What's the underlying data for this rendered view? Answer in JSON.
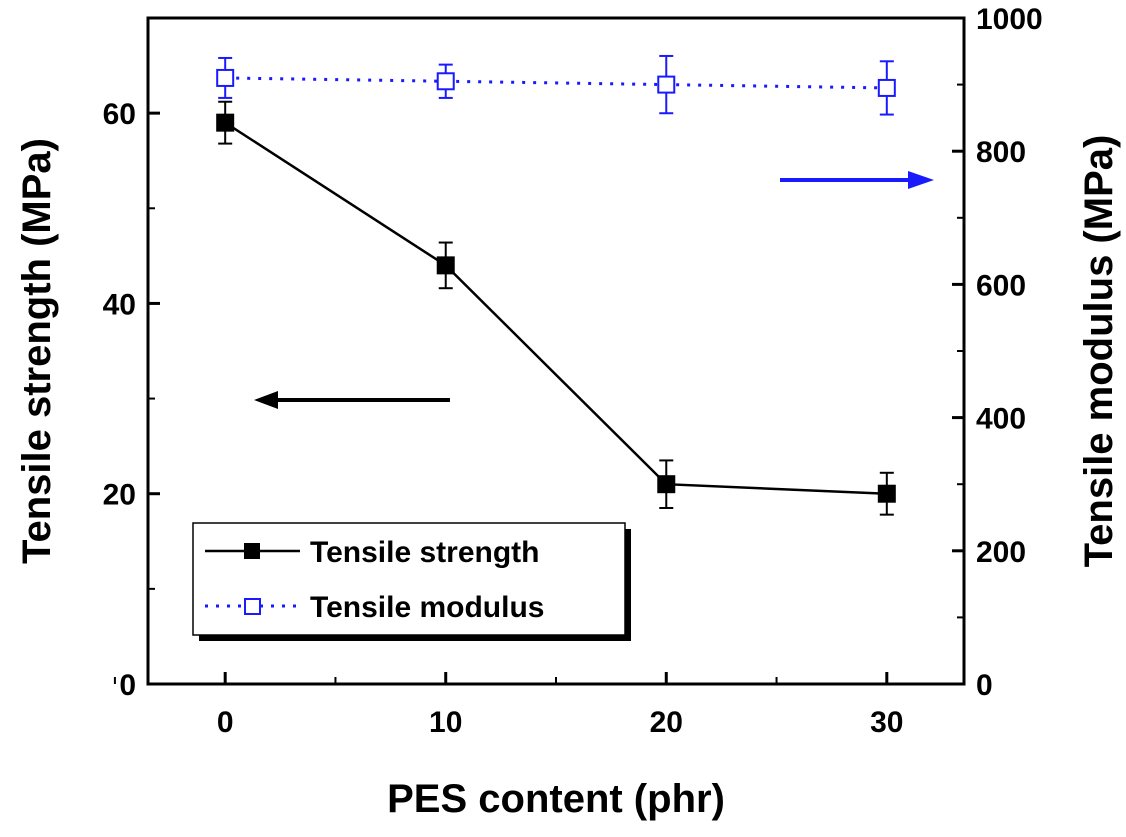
{
  "chart_data": {
    "type": "line",
    "xlabel": "PES content (phr)",
    "ylabel_left": "Tensile strength (MPa)",
    "ylabel_right": "Tensile modulus (MPa)",
    "x": [
      0,
      10,
      20,
      30
    ],
    "xticks": [
      "0",
      "10",
      "20",
      "30"
    ],
    "xlim": [
      -3.5,
      33.5
    ],
    "ylim_left": [
      0,
      70
    ],
    "yticks_left": [
      "0",
      "20",
      "40",
      "60"
    ],
    "ylim_right": [
      0,
      1000
    ],
    "yticks_right": [
      "0",
      "200",
      "400",
      "600",
      "800",
      "1000"
    ],
    "grid": false,
    "legend_position": "bottom-left",
    "series": [
      {
        "name": "Tensile strength",
        "axis": "left",
        "values": [
          59,
          44,
          21,
          20
        ],
        "errors": [
          2.2,
          2.4,
          2.5,
          2.2
        ],
        "color": "#000000",
        "line": "solid",
        "marker": "filled-square"
      },
      {
        "name": "Tensile modulus",
        "axis": "right",
        "values": [
          910,
          905,
          900,
          895
        ],
        "errors": [
          30,
          25,
          43,
          40
        ],
        "color": "#1a1aff",
        "line": "dotted",
        "marker": "open-square"
      }
    ],
    "annotations": [
      {
        "type": "arrow",
        "direction": "left",
        "color": "#000000"
      },
      {
        "type": "arrow",
        "direction": "right",
        "color": "#1a1aff"
      }
    ]
  }
}
